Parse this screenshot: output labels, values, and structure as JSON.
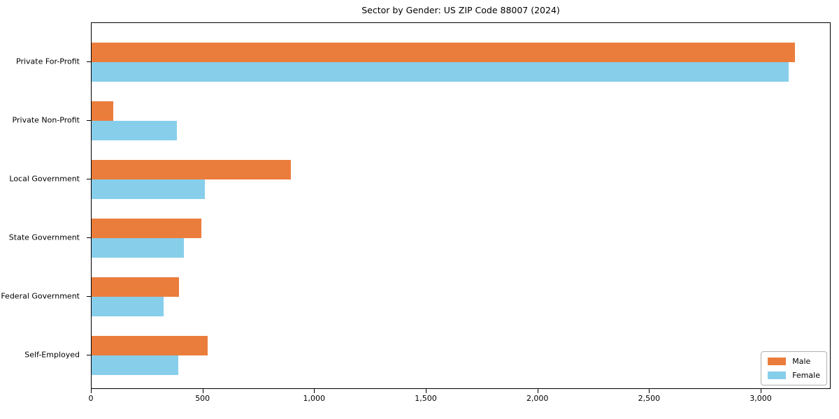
{
  "chart_data": {
    "type": "bar",
    "orientation": "horizontal",
    "title": "Sector by Gender: US ZIP Code 88007 (2024)",
    "categories": [
      "Private For-Profit",
      "Private Non-Profit",
      "Local Government",
      "State Government",
      "Federal Government",
      "Self-Employed"
    ],
    "series": [
      {
        "name": "Male",
        "color": "#eb7d3c",
        "values": [
          3150,
          97,
          893,
          492,
          391,
          520
        ]
      },
      {
        "name": "Female",
        "color": "#87ceeb",
        "values": [
          3122,
          382,
          507,
          413,
          323,
          388
        ]
      }
    ],
    "xlabel": "",
    "ylabel": "",
    "xlim": [
      0,
      3313
    ],
    "xticks": [
      0,
      500,
      1000,
      1500,
      2000,
      2500,
      3000
    ],
    "xtick_labels": [
      "0",
      "500",
      "1,000",
      "1,500",
      "2,000",
      "2,500",
      "3,000"
    ],
    "grid": false,
    "legend_position": "lower right",
    "background_color": "#ffffff",
    "frame_color": "#000000"
  }
}
